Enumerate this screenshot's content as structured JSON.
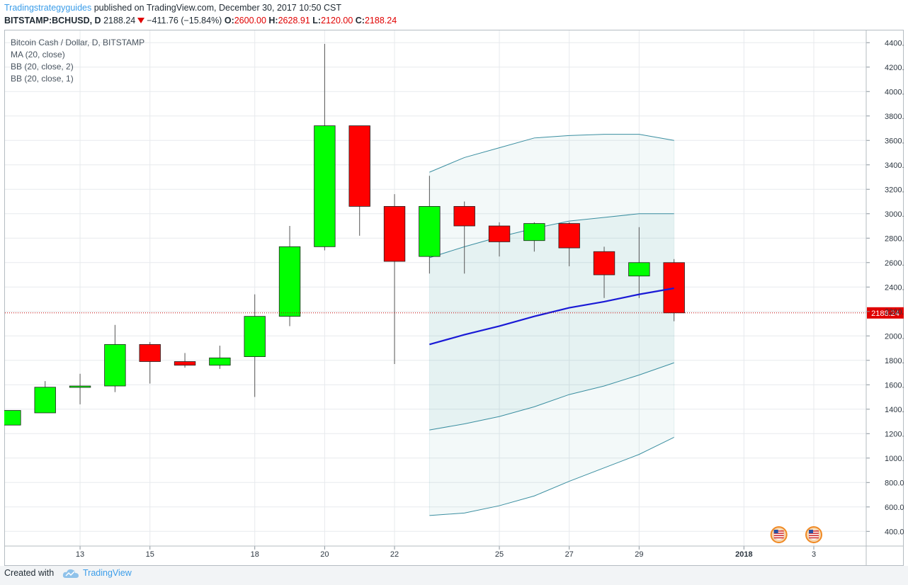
{
  "header": {
    "author": "Tradingstrategyguides",
    "published_text": " published on TradingView.com, December 30, 2017 10:50 CST",
    "symbol": "BITSTAMP:BCHUSD, D",
    "last": "2188.24",
    "change": "−411.76 (−15.84%)",
    "open_label": "O:",
    "open": "2600.00",
    "high_label": "H:",
    "high": "2628.91",
    "low_label": "L:",
    "low": "2120.00",
    "close_label": "C:",
    "close": "2188.24"
  },
  "legend": {
    "instrument": "Bitcoin Cash / Dollar, D, BITSTAMP",
    "ma": "MA (20, close)",
    "bb1": "BB (20, close, 2)",
    "bb2": "BB (20, close, 1)"
  },
  "price_label": "2188.24",
  "footer": {
    "created_with": "Created with",
    "brand": "TradingView"
  },
  "colors": {
    "bull": "#00ff00",
    "bear": "#ff0000",
    "ma": "#1a1ad6",
    "band": "#3a8ea0",
    "grid": "#e7eaed",
    "price_line": "#c00000"
  },
  "chart_data": {
    "type": "candlestick",
    "ylim": [
      280,
      4500
    ],
    "y_ticks": [
      "400.00",
      "600.00",
      "800.00",
      "1000.00",
      "1200.00",
      "1400.00",
      "1600.00",
      "1800.00",
      "2000.00",
      "2200.00",
      "2400.00",
      "2600.00",
      "2800.00",
      "3000.00",
      "3200.00",
      "3400.00",
      "3600.00",
      "3800.00",
      "4000.00",
      "4200.00",
      "4400.00"
    ],
    "x_ticks": [
      {
        "label": "13",
        "day": 13
      },
      {
        "label": "15",
        "day": 15
      },
      {
        "label": "18",
        "day": 18
      },
      {
        "label": "20",
        "day": 20
      },
      {
        "label": "22",
        "day": 22
      },
      {
        "label": "25",
        "day": 25
      },
      {
        "label": "27",
        "day": 27
      },
      {
        "label": "29",
        "day": 29
      },
      {
        "label": "2018",
        "day": 32
      },
      {
        "label": "3",
        "day": 34
      }
    ],
    "x_range": [
      10.85,
      35.5
    ],
    "candles": [
      {
        "day": 11,
        "o": 1270,
        "h": 1390,
        "l": 1270,
        "c": 1390
      },
      {
        "day": 12,
        "o": 1370,
        "h": 1630,
        "l": 1370,
        "c": 1580
      },
      {
        "day": 13,
        "o": 1580,
        "h": 1690,
        "l": 1440,
        "c": 1590
      },
      {
        "day": 14,
        "o": 1590,
        "h": 2090,
        "l": 1540,
        "c": 1930
      },
      {
        "day": 15,
        "o": 1930,
        "h": 1950,
        "l": 1610,
        "c": 1790
      },
      {
        "day": 16,
        "o": 1790,
        "h": 1860,
        "l": 1740,
        "c": 1760
      },
      {
        "day": 17,
        "o": 1760,
        "h": 1920,
        "l": 1730,
        "c": 1820
      },
      {
        "day": 18,
        "o": 1830,
        "h": 2340,
        "l": 1500,
        "c": 2160
      },
      {
        "day": 19,
        "o": 2160,
        "h": 2900,
        "l": 2080,
        "c": 2730
      },
      {
        "day": 20,
        "o": 2730,
        "h": 4390,
        "l": 2700,
        "c": 3720
      },
      {
        "day": 21,
        "o": 3720,
        "h": 3720,
        "l": 2820,
        "c": 3060
      },
      {
        "day": 22,
        "o": 3060,
        "h": 3160,
        "l": 1770,
        "c": 2610
      },
      {
        "day": 23,
        "o": 2650,
        "h": 3310,
        "l": 2510,
        "c": 3060
      },
      {
        "day": 24,
        "o": 3060,
        "h": 3100,
        "l": 2510,
        "c": 2900
      },
      {
        "day": 25,
        "o": 2900,
        "h": 2930,
        "l": 2650,
        "c": 2770
      },
      {
        "day": 26,
        "o": 2780,
        "h": 2930,
        "l": 2690,
        "c": 2920
      },
      {
        "day": 27,
        "o": 2920,
        "h": 2930,
        "l": 2570,
        "c": 2720
      },
      {
        "day": 28,
        "o": 2690,
        "h": 2730,
        "l": 2310,
        "c": 2500
      },
      {
        "day": 29,
        "o": 2490,
        "h": 2890,
        "l": 2310,
        "c": 2600
      },
      {
        "day": 30,
        "o": 2600,
        "h": 2628.91,
        "l": 2120,
        "c": 2188.24
      }
    ],
    "ma": [
      {
        "day": 23,
        "v": 1930
      },
      {
        "day": 24,
        "v": 2010
      },
      {
        "day": 25,
        "v": 2080
      },
      {
        "day": 26,
        "v": 2160
      },
      {
        "day": 27,
        "v": 2230
      },
      {
        "day": 28,
        "v": 2280
      },
      {
        "day": 29,
        "v": 2340
      },
      {
        "day": 30,
        "v": 2390
      }
    ],
    "bb_2sd_upper": [
      {
        "day": 23,
        "v": 3340
      },
      {
        "day": 24,
        "v": 3460
      },
      {
        "day": 25,
        "v": 3540
      },
      {
        "day": 26,
        "v": 3620
      },
      {
        "day": 27,
        "v": 3640
      },
      {
        "day": 28,
        "v": 3650
      },
      {
        "day": 29,
        "v": 3650
      },
      {
        "day": 30,
        "v": 3600
      }
    ],
    "bb_2sd_lower": [
      {
        "day": 23,
        "v": 530
      },
      {
        "day": 24,
        "v": 550
      },
      {
        "day": 25,
        "v": 610
      },
      {
        "day": 26,
        "v": 690
      },
      {
        "day": 27,
        "v": 810
      },
      {
        "day": 28,
        "v": 920
      },
      {
        "day": 29,
        "v": 1030
      },
      {
        "day": 30,
        "v": 1170
      }
    ],
    "bb_1sd_upper": [
      {
        "day": 23,
        "v": 2640
      },
      {
        "day": 24,
        "v": 2730
      },
      {
        "day": 25,
        "v": 2810
      },
      {
        "day": 26,
        "v": 2880
      },
      {
        "day": 27,
        "v": 2940
      },
      {
        "day": 28,
        "v": 2970
      },
      {
        "day": 29,
        "v": 3000
      },
      {
        "day": 30,
        "v": 3000
      }
    ],
    "bb_1sd_lower": [
      {
        "day": 23,
        "v": 1230
      },
      {
        "day": 24,
        "v": 1280
      },
      {
        "day": 25,
        "v": 1340
      },
      {
        "day": 26,
        "v": 1420
      },
      {
        "day": 27,
        "v": 1520
      },
      {
        "day": 28,
        "v": 1590
      },
      {
        "day": 29,
        "v": 1680
      },
      {
        "day": 30,
        "v": 1780
      }
    ],
    "last_price": 2188.24,
    "events_days": [
      33,
      34
    ]
  }
}
